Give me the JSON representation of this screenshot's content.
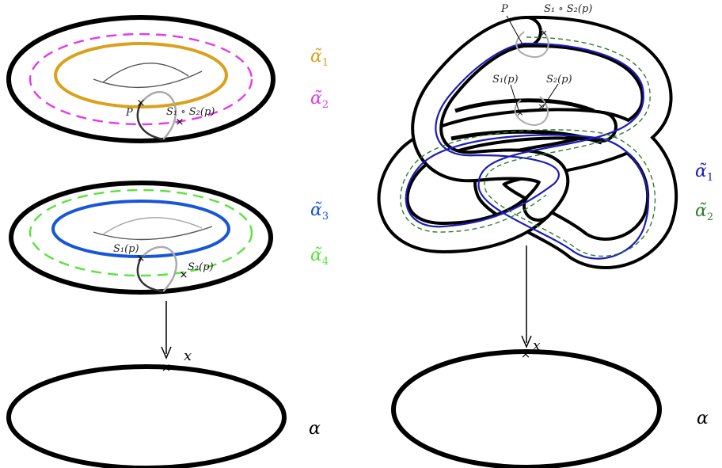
{
  "colors": {
    "alpha1_left": "#d9a11d",
    "alpha2_left": "#e23be6",
    "alpha3_left": "#1756d6",
    "alpha4_left": "#5ae23c",
    "alpha1_right": "#1c1cb8",
    "alpha2_right": "#2e7d2e",
    "stroke": "#000000"
  },
  "left": {
    "top_torus": {
      "labels": [
        {
          "base": "α̃",
          "sub": "1"
        },
        {
          "base": "α̃",
          "sub": "2"
        }
      ],
      "point_p": "P",
      "point_s1s2": "S₁ ∘ S₂(p)"
    },
    "bottom_torus": {
      "labels": [
        {
          "base": "α̃",
          "sub": "3"
        },
        {
          "base": "α̃",
          "sub": "4"
        }
      ],
      "point_s1": "S₁(p)",
      "point_s2": "S₂(p)"
    },
    "base_circle": {
      "point_x": "x",
      "label": "α"
    }
  },
  "right": {
    "knot": {
      "point_p": "P",
      "point_s1s2": "S₁ ∘ S₂(p)",
      "point_s1": "S₁(p)",
      "point_s2": "S₂(p)",
      "labels": [
        {
          "base": "α̃",
          "sub": "1"
        },
        {
          "base": "α̃",
          "sub": "2"
        }
      ]
    },
    "base_circle": {
      "point_x": "x",
      "label": "α"
    }
  }
}
